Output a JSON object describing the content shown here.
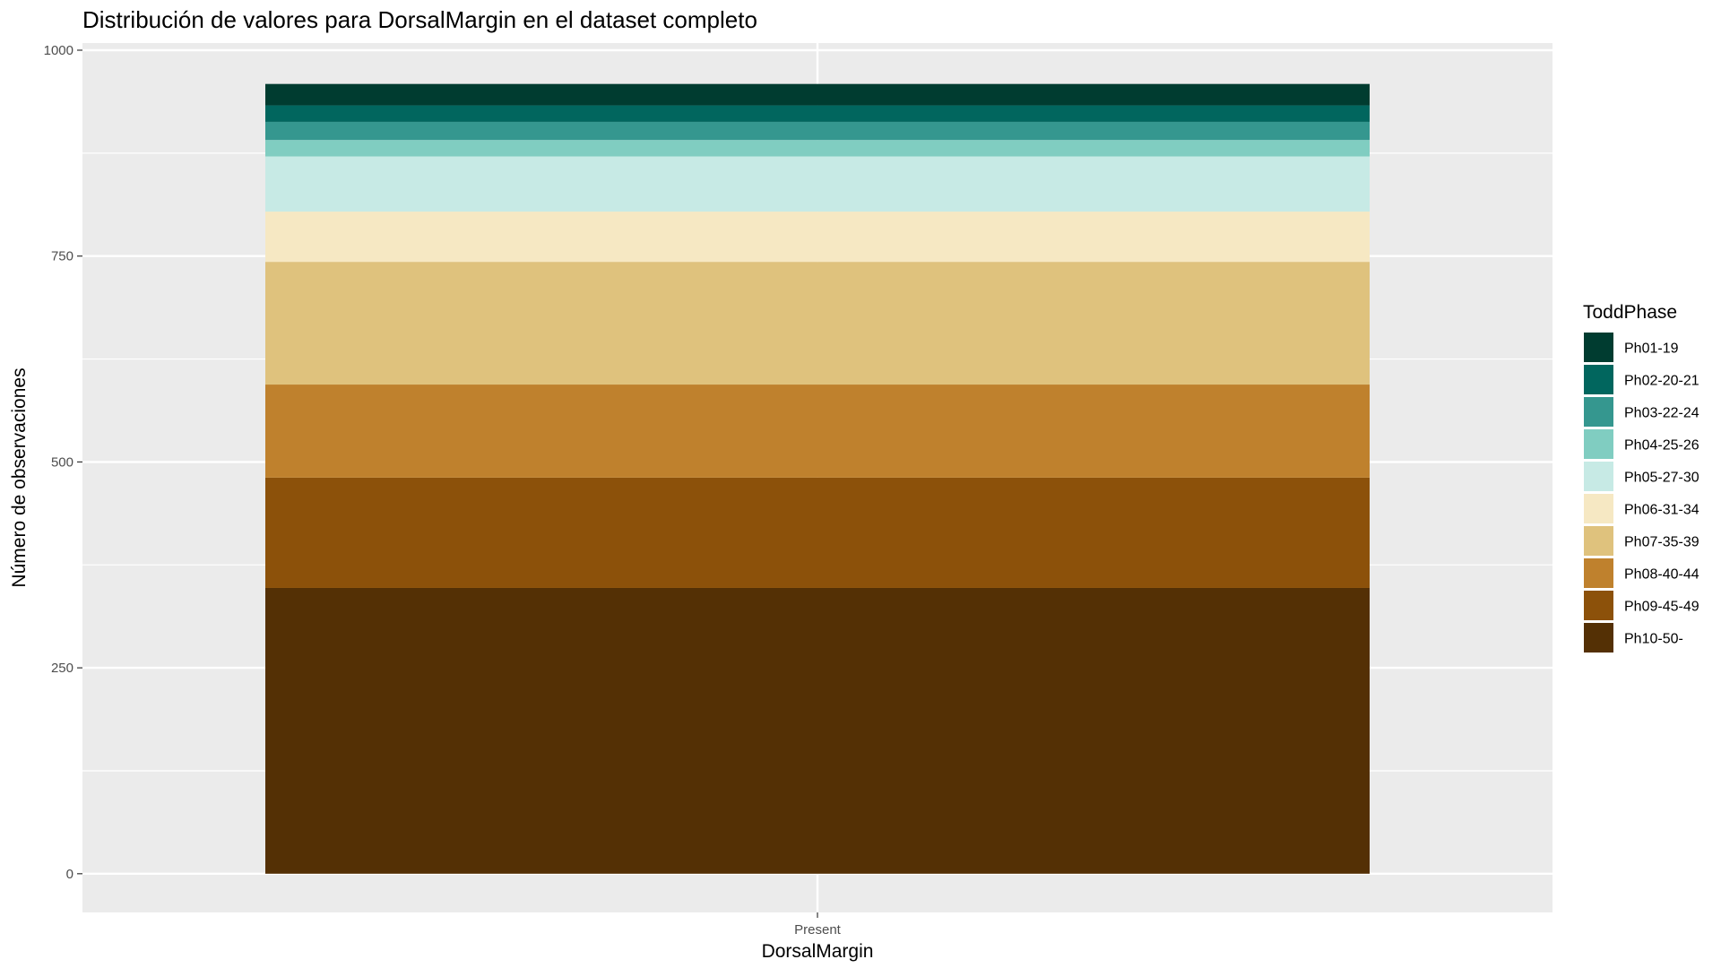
{
  "chart_data": {
    "type": "bar",
    "stacked": true,
    "title": "Distribución de valores para DorsalMargin en el dataset completo",
    "xlabel": "DorsalMargin",
    "ylabel": "Número de observaciones",
    "categories": [
      "Present"
    ],
    "ylim": [
      -47,
      1000
    ],
    "yticks": [
      0,
      250,
      500,
      750,
      1000
    ],
    "grid": true,
    "legend_title": "ToddPhase",
    "legend_position": "right",
    "series": [
      {
        "name": "Ph10-50-",
        "values": [
          347
        ],
        "color": "#543005"
      },
      {
        "name": "Ph09-45-49",
        "values": [
          134
        ],
        "color": "#8C510A"
      },
      {
        "name": "Ph08-40-44",
        "values": [
          113
        ],
        "color": "#BF812D"
      },
      {
        "name": "Ph07-35-39",
        "values": [
          149
        ],
        "color": "#DFC27D"
      },
      {
        "name": "Ph06-31-34",
        "values": [
          61
        ],
        "color": "#F6E8C3"
      },
      {
        "name": "Ph05-27-30",
        "values": [
          67
        ],
        "color": "#C7EAE5"
      },
      {
        "name": "Ph04-25-26",
        "values": [
          20
        ],
        "color": "#80CDC1"
      },
      {
        "name": "Ph03-22-24",
        "values": [
          22
        ],
        "color": "#35978F"
      },
      {
        "name": "Ph02-20-21",
        "values": [
          20
        ],
        "color": "#01665E"
      },
      {
        "name": "Ph01-19",
        "values": [
          26
        ],
        "color": "#003C30"
      }
    ],
    "legend_order": [
      "Ph01-19",
      "Ph02-20-21",
      "Ph03-22-24",
      "Ph04-25-26",
      "Ph05-27-30",
      "Ph06-31-34",
      "Ph07-35-39",
      "Ph08-40-44",
      "Ph09-45-49",
      "Ph10-50-"
    ],
    "panel_background": "#EBEBEB",
    "grid_color": "#FFFFFF"
  }
}
